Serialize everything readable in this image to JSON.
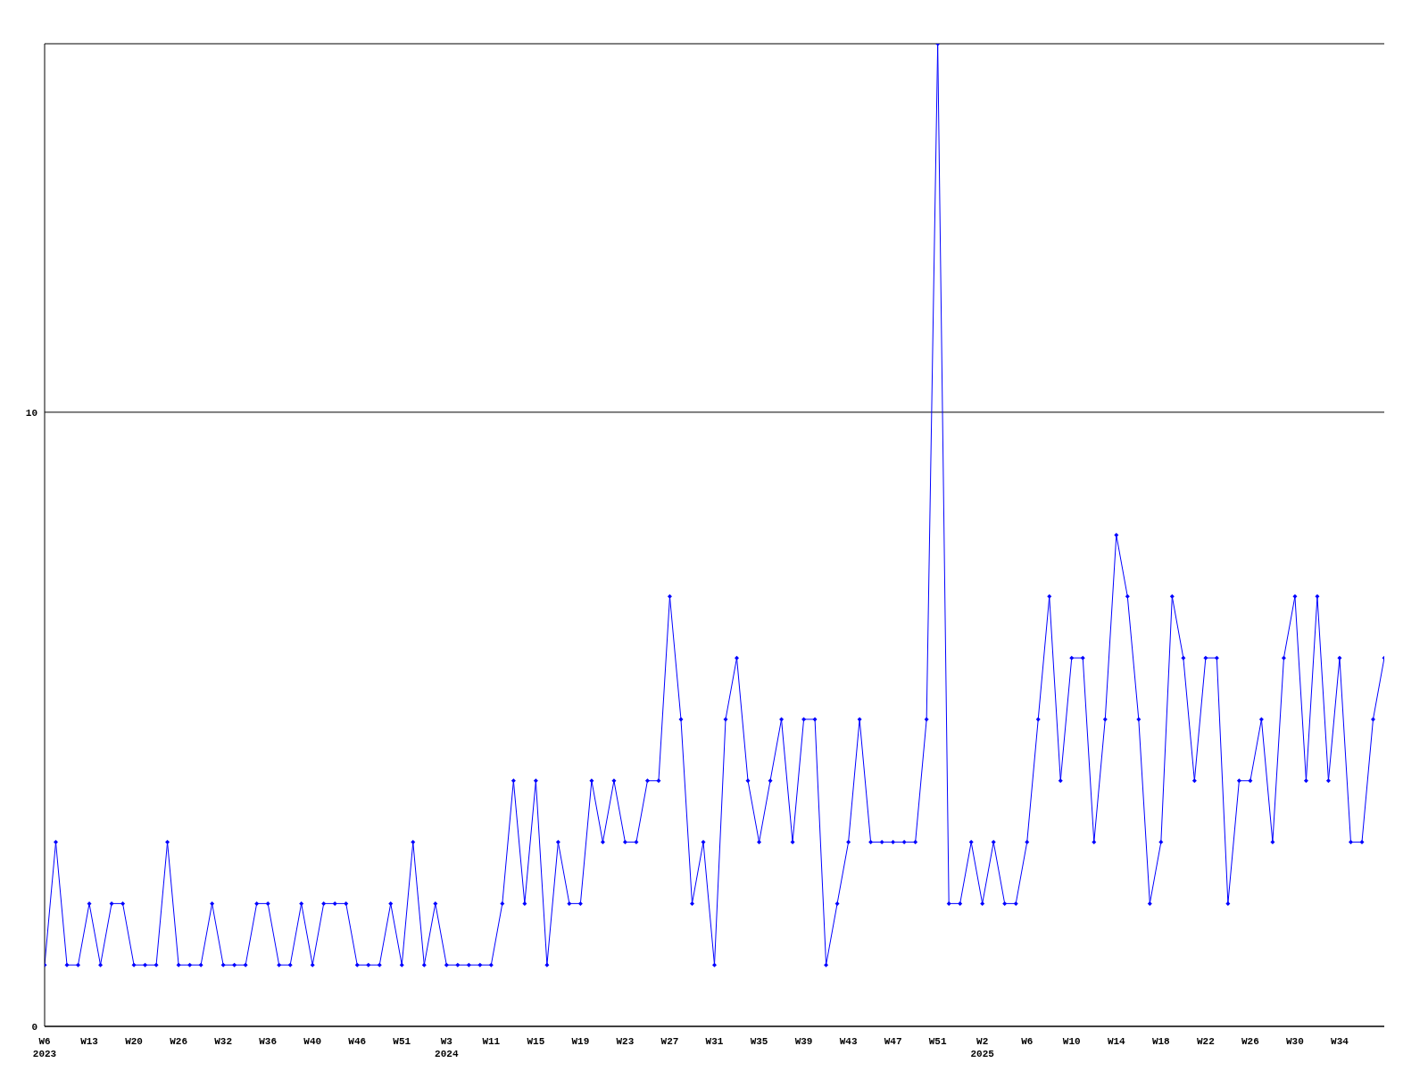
{
  "chart_data": {
    "type": "line",
    "categories": [
      "W6\n2023",
      null,
      null,
      null,
      "W13",
      null,
      null,
      null,
      "W20",
      null,
      null,
      null,
      "W26",
      null,
      null,
      null,
      "W32",
      null,
      null,
      null,
      "W36",
      null,
      null,
      null,
      "W40",
      null,
      null,
      null,
      "W46",
      null,
      null,
      null,
      "W51",
      null,
      null,
      null,
      "W3\n2024",
      null,
      null,
      null,
      "W11",
      null,
      null,
      null,
      "W15",
      null,
      null,
      null,
      "W19",
      null,
      null,
      null,
      "W23",
      null,
      null,
      null,
      "W27",
      null,
      null,
      null,
      "W31",
      null,
      null,
      null,
      "W35",
      null,
      null,
      null,
      "W39",
      null,
      null,
      null,
      "W43",
      null,
      null,
      null,
      "W47",
      null,
      null,
      null,
      "W51",
      null,
      null,
      null,
      "W2\n2025",
      null,
      null,
      null,
      "W6",
      null,
      null,
      null,
      "W10",
      null,
      null,
      null,
      "W14",
      null,
      null,
      null,
      "W18",
      null,
      null,
      null,
      "W22",
      null,
      null,
      null,
      "W26",
      null,
      null,
      null,
      "W30",
      null,
      null,
      null,
      "W34",
      null,
      null,
      null,
      null
    ],
    "series": [
      {
        "color": "#0000ff",
        "values": [
          1,
          3,
          1,
          1,
          2,
          1,
          2,
          2,
          1,
          1,
          1,
          3,
          1,
          1,
          1,
          2,
          1,
          1,
          1,
          2,
          2,
          1,
          1,
          2,
          1,
          2,
          2,
          2,
          1,
          1,
          1,
          2,
          1,
          3,
          1,
          2,
          1,
          1,
          1,
          1,
          1,
          2,
          4,
          2,
          4,
          1,
          3,
          2,
          2,
          4,
          3,
          4,
          3,
          3,
          4,
          4,
          7,
          5,
          2,
          3,
          1,
          5,
          6,
          4,
          3,
          4,
          5,
          3,
          5,
          5,
          1,
          2,
          3,
          5,
          3,
          3,
          3,
          3,
          3,
          5,
          16,
          2,
          2,
          3,
          2,
          3,
          2,
          2,
          3,
          5,
          7,
          4,
          6,
          6,
          3,
          5,
          8,
          7,
          5,
          2,
          3,
          7,
          6,
          4,
          6,
          6,
          2,
          4,
          4,
          5,
          3,
          6,
          7,
          4,
          7,
          4,
          6,
          3,
          3,
          5,
          6
        ]
      }
    ],
    "ylim": [
      0,
      16
    ],
    "yticks": [
      0,
      10
    ],
    "grid": "y",
    "marker": "diamond",
    "line_style": "solid"
  }
}
